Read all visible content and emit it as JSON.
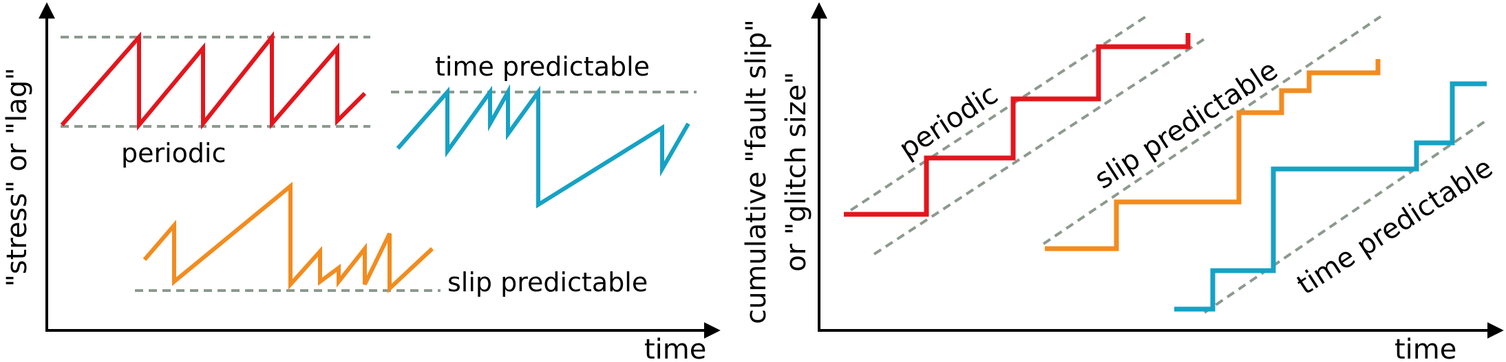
{
  "panel_left": {
    "y_axis_label": "\"stress\" or \"lag\"",
    "x_axis_label": "time",
    "labels": {
      "periodic": "periodic",
      "time_predictable": "time predictable",
      "slip_predictable": "slip predictable"
    }
  },
  "panel_right": {
    "y_axis_label_line1": "cumulative \"fault slip\"",
    "y_axis_label_line2": "or \"glitch size\"",
    "x_axis_label": "time",
    "labels": {
      "periodic": "periodic",
      "slip_predictable": "slip predictable",
      "time_predictable": "time predictable"
    }
  },
  "colors": {
    "periodic": "#e3161c",
    "slip_predictable": "#f28c1f",
    "time_predictable": "#16a2c4",
    "guide": "#8c9a8e",
    "axis": "#000000"
  }
}
